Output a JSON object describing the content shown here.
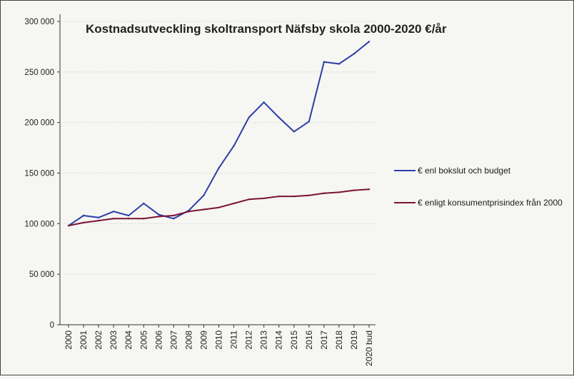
{
  "chart_data": {
    "type": "line",
    "title": "Kostnadsutveckling skoltransport Näfsby skola 2000-2020 €/år",
    "xlabel": "",
    "ylabel": "",
    "categories": [
      "2000",
      "2001",
      "2002",
      "2003",
      "2004",
      "2005",
      "2006",
      "2007",
      "2008",
      "2009",
      "2010",
      "2011",
      "2012",
      "2013",
      "2014",
      "2015",
      "2016",
      "2017",
      "2018",
      "2019",
      "2020 bud"
    ],
    "ylim": [
      0,
      300000
    ],
    "yticks": [
      0,
      50000,
      100000,
      150000,
      200000,
      250000,
      300000
    ],
    "ytick_labels": [
      "0",
      "50 000",
      "100 000",
      "150 000",
      "200 000",
      "250 000",
      "300 000"
    ],
    "grid": true,
    "legend_position": "right",
    "series": [
      {
        "name": "€ enl bokslut och budget",
        "color": "#2b3fa8",
        "values": [
          98000,
          108000,
          106000,
          112000,
          108000,
          120000,
          109000,
          105000,
          113000,
          128000,
          155000,
          177000,
          205000,
          220000,
          205000,
          191000,
          201000,
          260000,
          258000,
          268000,
          280000
        ]
      },
      {
        "name": "€ enligt konsumentprisindex från 2000",
        "color": "#7a1436",
        "values": [
          98000,
          101000,
          103000,
          105000,
          105000,
          105000,
          107000,
          108000,
          112000,
          114000,
          116000,
          120000,
          124000,
          125000,
          127000,
          127000,
          128000,
          130000,
          131000,
          133000,
          134000
        ]
      }
    ]
  }
}
